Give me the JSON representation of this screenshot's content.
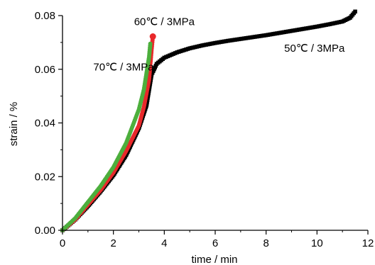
{
  "chart_data": {
    "type": "scatter",
    "title": "",
    "xlabel": "time / min",
    "ylabel": "strain / %",
    "xlim": [
      0,
      12
    ],
    "ylim": [
      0,
      0.08
    ],
    "xticks": [
      "0",
      "2",
      "4",
      "6",
      "8",
      "10",
      "12"
    ],
    "yticks": [
      "0.00",
      "0.02",
      "0.04",
      "0.06",
      "0.08"
    ],
    "grid": false,
    "annotations": [
      {
        "text": "60℃ / 3MPa",
        "x": 4.0,
        "y": 0.0765
      },
      {
        "text": "70℃ / 3MPa",
        "x": 2.4,
        "y": 0.0595
      },
      {
        "text": "50℃ / 3MPa",
        "x": 9.9,
        "y": 0.0665
      }
    ],
    "series": [
      {
        "name": "50℃ / 3MPa",
        "color": "#000000",
        "marker": "square",
        "x": [
          0,
          0.5,
          1,
          1.5,
          2,
          2.5,
          3,
          3.3,
          3.5,
          3.7,
          4,
          4.5,
          5,
          5.5,
          6,
          6.5,
          7,
          7.5,
          8,
          8.5,
          9,
          9.5,
          10,
          10.5,
          11,
          11.3,
          11.5
        ],
        "y": [
          0,
          0.004,
          0.009,
          0.0145,
          0.0205,
          0.028,
          0.038,
          0.0465,
          0.058,
          0.062,
          0.0643,
          0.0663,
          0.0678,
          0.0689,
          0.0698,
          0.0706,
          0.0713,
          0.072,
          0.0727,
          0.0735,
          0.0743,
          0.0751,
          0.0759,
          0.0768,
          0.0778,
          0.0792,
          0.0815
        ]
      },
      {
        "name": "60℃ / 3MPa",
        "color": "#e8282a",
        "marker": "circle",
        "x": [
          0,
          0.5,
          1,
          1.5,
          2,
          2.5,
          3,
          3.2,
          3.4,
          3.5,
          3.55
        ],
        "y": [
          0,
          0.004,
          0.0095,
          0.015,
          0.0215,
          0.0295,
          0.039,
          0.046,
          0.056,
          0.0672,
          0.0722
        ]
      },
      {
        "name": "70℃ / 3MPa",
        "color": "#4caf3c",
        "marker": "circle",
        "x": [
          0,
          0.5,
          1,
          1.5,
          2,
          2.5,
          3,
          3.2,
          3.3,
          3.4,
          3.45
        ],
        "y": [
          0,
          0.0045,
          0.0105,
          0.0165,
          0.0235,
          0.0325,
          0.045,
          0.0525,
          0.0585,
          0.0645,
          0.0695
        ]
      }
    ]
  }
}
